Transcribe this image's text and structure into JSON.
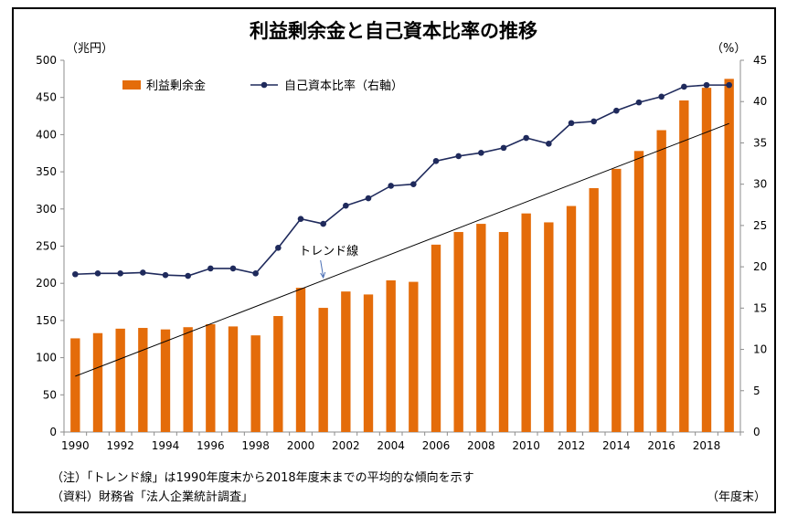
{
  "chart_data": {
    "type": "bar+line",
    "title": "利益剰余金と自己資本比率の推移",
    "left_unit": "（兆円）",
    "right_unit": "（%）",
    "x_unit": "（年度末）",
    "categories": [
      1990,
      1991,
      1992,
      1993,
      1994,
      1995,
      1996,
      1997,
      1998,
      1999,
      2000,
      2001,
      2002,
      2003,
      2004,
      2005,
      2006,
      2007,
      2008,
      2009,
      2010,
      2011,
      2012,
      2013,
      2014,
      2015,
      2016,
      2017,
      2018,
      2019
    ],
    "x_tick_labels": [
      "1990",
      "1992",
      "1994",
      "1996",
      "1998",
      "2000",
      "2002",
      "2004",
      "2006",
      "2008",
      "2010",
      "2012",
      "2014",
      "2016",
      "2018"
    ],
    "left_axis": {
      "min": 0,
      "max": 500,
      "step": 50,
      "ticks": [
        "0",
        "50",
        "100",
        "150",
        "200",
        "250",
        "300",
        "350",
        "400",
        "450",
        "500"
      ]
    },
    "right_axis": {
      "min": 0,
      "max": 45,
      "step": 5,
      "ticks": [
        "0",
        "5",
        "10",
        "15",
        "20",
        "25",
        "30",
        "35",
        "40",
        "45"
      ]
    },
    "series": [
      {
        "name": "利益剰余金",
        "type": "bar",
        "axis": "left",
        "color": "#E46C0A",
        "values": [
          126,
          133,
          139,
          140,
          138,
          141,
          145,
          142,
          130,
          156,
          194,
          167,
          189,
          185,
          204,
          202,
          252,
          269,
          280,
          269,
          294,
          282,
          304,
          328,
          354,
          378,
          406,
          446,
          463,
          475
        ]
      },
      {
        "name": "自己資本比率（右軸）",
        "type": "line",
        "axis": "right",
        "color": "#1F2A5C",
        "values": [
          19.1,
          19.2,
          19.2,
          19.3,
          19.0,
          18.9,
          19.8,
          19.8,
          19.2,
          22.3,
          25.8,
          25.2,
          27.4,
          28.3,
          29.8,
          30.0,
          32.8,
          33.4,
          33.8,
          34.4,
          35.6,
          34.9,
          37.4,
          37.6,
          38.9,
          39.9,
          40.6,
          41.8,
          42.0,
          42.0
        ]
      }
    ],
    "trend_line": {
      "label": "トレンド線",
      "color": "#000000",
      "start_value": 75,
      "end_value": 415
    },
    "legend": {
      "position": "top-left",
      "items": [
        "利益剰余金",
        "自己資本比率（右軸）"
      ]
    },
    "grid": false
  },
  "notes": {
    "note1": "（注）「トレンド線」は1990年度末から2018年度末までの平均的な傾向を示す",
    "note2": "（資料）財務省「法人企業統計調査」"
  },
  "colors": {
    "bar": "#E46C0A",
    "line": "#1F2A5C",
    "axis": "#8c8c8c"
  }
}
